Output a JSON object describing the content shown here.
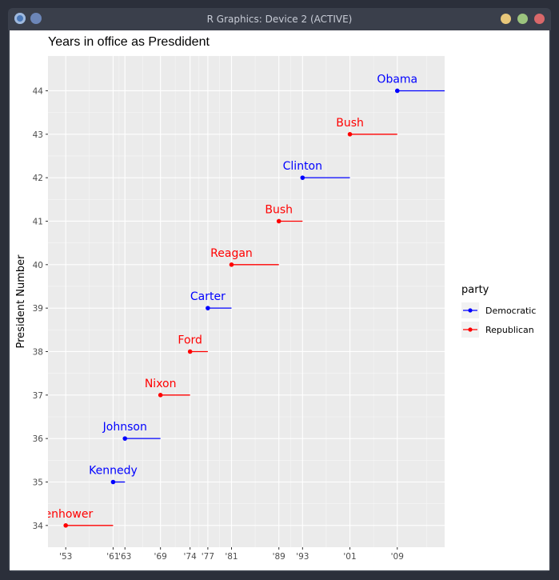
{
  "window": {
    "title": "R Graphics: Device 2 (ACTIVE)",
    "app_icon": "r-logo-icon",
    "accent_icon": "circle-icon",
    "buttons": [
      {
        "name": "minimize-button",
        "color": "#e8c77a"
      },
      {
        "name": "maximize-button",
        "color": "#9cc47e"
      },
      {
        "name": "close-button",
        "color": "#d9686a"
      }
    ]
  },
  "chart_data": {
    "type": "scatter",
    "title": "Years in office as Presdident",
    "xlabel": "",
    "ylabel": "President Number",
    "xlim": [
      1950,
      2017
    ],
    "ylim": [
      33.5,
      44.8
    ],
    "x_ticks": [
      1953,
      1961,
      1963,
      1969,
      1974,
      1977,
      1981,
      1989,
      1993,
      2001,
      2009
    ],
    "x_tick_labels": [
      "'53",
      "'61",
      "'63",
      "'69",
      "'74",
      "'77",
      "'81",
      "'89",
      "'93",
      "'01",
      "'09"
    ],
    "y_ticks": [
      34,
      35,
      36,
      37,
      38,
      39,
      40,
      41,
      42,
      43,
      44
    ],
    "y_tick_labels": [
      "34",
      "35",
      "36",
      "37",
      "38",
      "39",
      "40",
      "41",
      "42",
      "43",
      "44"
    ],
    "legend": {
      "title": "party",
      "position": "right",
      "entries": [
        {
          "label": "Democratic",
          "color": "#0000ff"
        },
        {
          "label": "Republican",
          "color": "#ff0000"
        }
      ]
    },
    "colors": {
      "Democratic": "#0000ff",
      "Republican": "#ff0000",
      "panel": "#ebebeb",
      "grid": "#ffffff"
    },
    "presidents": [
      {
        "name": "Eisenhower",
        "label": "senhower",
        "id": 34,
        "start": 1953,
        "end": 1961,
        "party": "Republican"
      },
      {
        "name": "Kennedy",
        "label": "Kennedy",
        "id": 35,
        "start": 1961,
        "end": 1963,
        "party": "Democratic"
      },
      {
        "name": "Johnson",
        "label": "Johnson",
        "id": 36,
        "start": 1963,
        "end": 1969,
        "party": "Democratic"
      },
      {
        "name": "Nixon",
        "label": "Nixon",
        "id": 37,
        "start": 1969,
        "end": 1974,
        "party": "Republican"
      },
      {
        "name": "Ford",
        "label": "Ford",
        "id": 38,
        "start": 1974,
        "end": 1977,
        "party": "Republican"
      },
      {
        "name": "Carter",
        "label": "Carter",
        "id": 39,
        "start": 1977,
        "end": 1981,
        "party": "Democratic"
      },
      {
        "name": "Reagan",
        "label": "Reagan",
        "id": 40,
        "start": 1981,
        "end": 1989,
        "party": "Republican"
      },
      {
        "name": "Bush",
        "label": "Bush",
        "id": 41,
        "start": 1989,
        "end": 1993,
        "party": "Republican"
      },
      {
        "name": "Clinton",
        "label": "Clinton",
        "id": 42,
        "start": 1993,
        "end": 2001,
        "party": "Democratic"
      },
      {
        "name": "Bush",
        "label": "Bush",
        "id": 43,
        "start": 2001,
        "end": 2009,
        "party": "Republican"
      },
      {
        "name": "Obama",
        "label": "Obama",
        "id": 44,
        "start": 2009,
        "end": 2017,
        "party": "Democratic"
      }
    ]
  }
}
